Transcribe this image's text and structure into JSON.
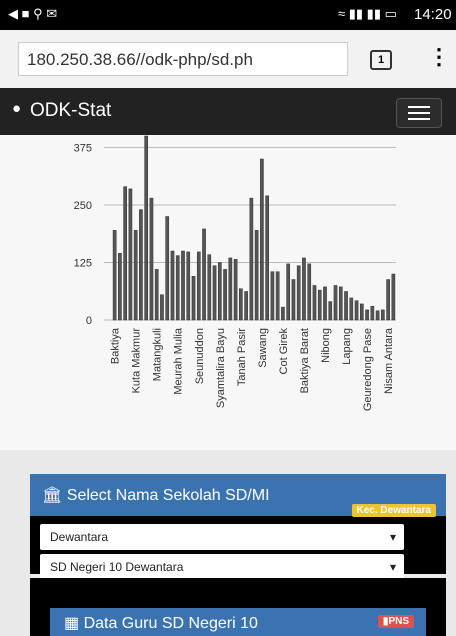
{
  "status_bar": {
    "time": "14:20"
  },
  "url_bar": {
    "url": "180.250.38.66//odk-php/sd.ph",
    "tabs": "1"
  },
  "app_header": {
    "title": "ODK-Stat"
  },
  "chart_data": {
    "type": "bar",
    "categories": [
      "Baktiya",
      null,
      null,
      null,
      "Kuta Makmur",
      null,
      null,
      null,
      "Matangkuli",
      null,
      null,
      null,
      "Meurah Mulia",
      null,
      null,
      null,
      "Seunuddon",
      null,
      null,
      null,
      "Syamtalira Bayu",
      null,
      null,
      null,
      "Tanah Pasir",
      null,
      null,
      null,
      "Sawang",
      null,
      null,
      null,
      "Cot Girek",
      null,
      null,
      null,
      "Baktiya Barat",
      null,
      null,
      null,
      "Nibong",
      null,
      null,
      null,
      "Lapang",
      null,
      null,
      null,
      "Geuredong Pase",
      null,
      null,
      null,
      "Nisam Antara",
      null
    ],
    "values": [
      195,
      145,
      290,
      285,
      195,
      240,
      400,
      265,
      110,
      55,
      225,
      150,
      140,
      150,
      148,
      95,
      148,
      198,
      142,
      118,
      125,
      110,
      135,
      132,
      68,
      62,
      265,
      195,
      350,
      270,
      105,
      105,
      28,
      122,
      88,
      118,
      135,
      122,
      75,
      65,
      72,
      40,
      75,
      72,
      62,
      48,
      42,
      35,
      22,
      30,
      20,
      22,
      88,
      100
    ],
    "color": "#555555",
    "ylim": [
      0,
      400
    ],
    "yticks": [
      0,
      125,
      250,
      375
    ],
    "grid": true
  },
  "panel_select": {
    "title": "Select Nama Sekolah SD/MI",
    "badge": "Kec. Dewantara",
    "select_1": "Dewantara",
    "select_2": "SD Negeri 10 Dewantara"
  },
  "panel_guru": {
    "title": "Data Guru SD Negeri 10",
    "badge": "PNS"
  }
}
